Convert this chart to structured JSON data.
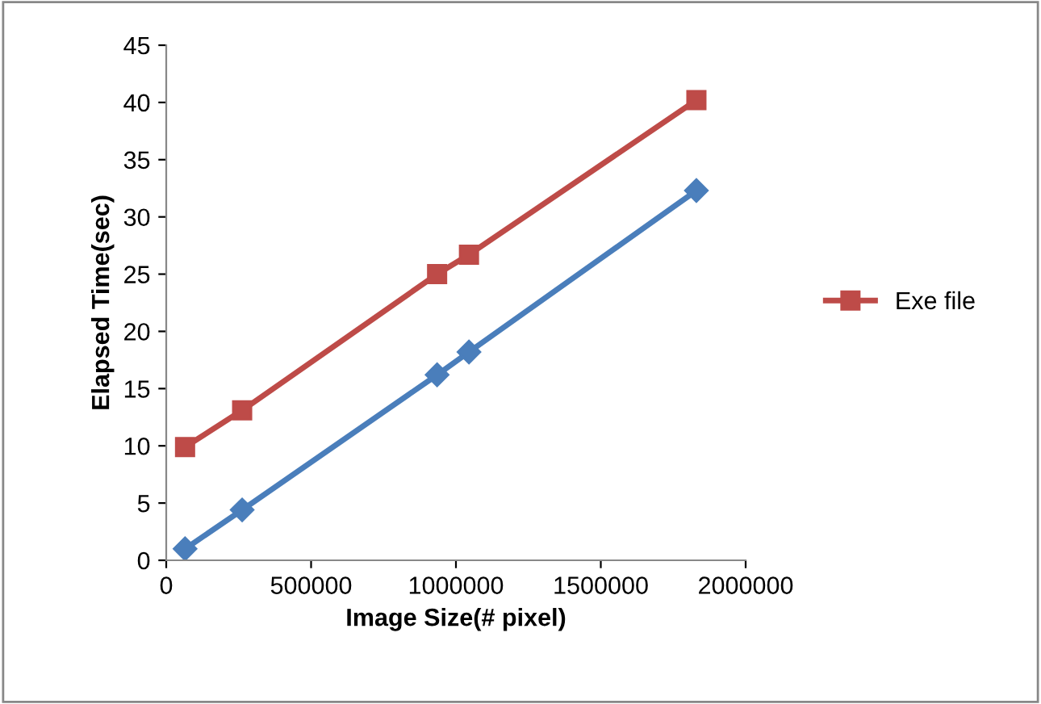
{
  "chart_data": {
    "type": "line",
    "xlabel": "Image Size(# pixel)",
    "ylabel": "Elapsed Time(sec)",
    "xlim": [
      0,
      2000000
    ],
    "xticks": [
      0,
      500000,
      1000000,
      1500000,
      2000000
    ],
    "ylim": [
      0,
      45
    ],
    "yticks": [
      0,
      5,
      10,
      15,
      20,
      25,
      30,
      35,
      40,
      45
    ],
    "x": [
      65000,
      262000,
      935000,
      1045000,
      1830000
    ],
    "series": [
      {
        "color": "#4a7ebb",
        "marker": "diamond",
        "values": [
          1.0,
          4.4,
          16.2,
          18.2,
          32.3
        ]
      },
      {
        "name": "Exe file",
        "color": "#be4b48",
        "marker": "square",
        "values": [
          9.9,
          13.1,
          25.0,
          26.7,
          40.2
        ]
      }
    ],
    "grid": false,
    "legend": "right"
  }
}
